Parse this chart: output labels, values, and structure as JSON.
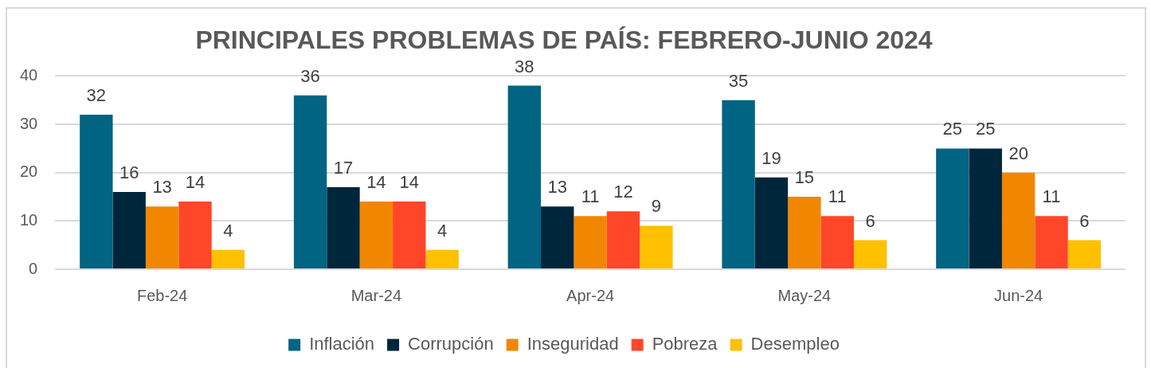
{
  "chart_data": {
    "type": "bar",
    "title": "PRINCIPALES PROBLEMAS DE PAÍS: FEBRERO-JUNIO 2024",
    "categories": [
      "Feb-24",
      "Mar-24",
      "Apr-24",
      "May-24",
      "Jun-24"
    ],
    "series": [
      {
        "name": "Inflación",
        "color": "#006482",
        "values": [
          32,
          36,
          38,
          35,
          25
        ]
      },
      {
        "name": "Corrupción",
        "color": "#00263c",
        "values": [
          16,
          17,
          13,
          19,
          25
        ]
      },
      {
        "name": "Inseguridad",
        "color": "#f18700",
        "values": [
          13,
          14,
          11,
          15,
          20
        ]
      },
      {
        "name": "Pobreza",
        "color": "#ff4628",
        "values": [
          14,
          14,
          12,
          11,
          11
        ]
      },
      {
        "name": "Desempleo",
        "color": "#ffc000",
        "values": [
          4,
          4,
          9,
          6,
          6
        ]
      }
    ],
    "ylim": [
      0,
      40
    ],
    "yticks": [
      0,
      10,
      20,
      30,
      40
    ],
    "grid": "y",
    "legend": "bottom",
    "data_labels": true
  }
}
